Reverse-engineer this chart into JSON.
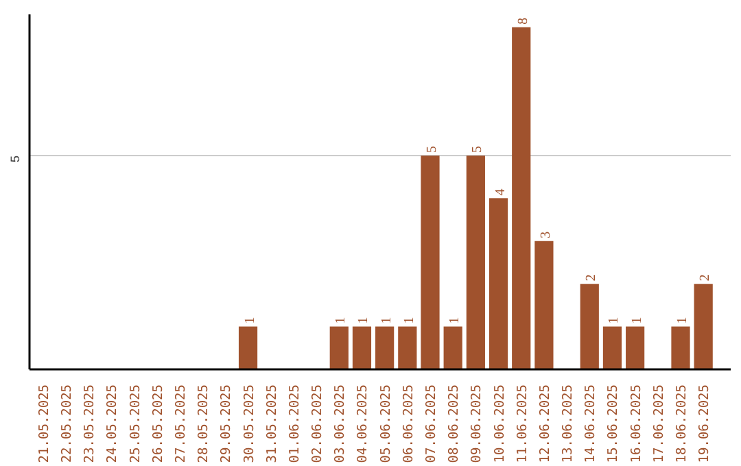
{
  "chart_data": {
    "type": "bar",
    "categories": [
      "21.05.2025",
      "22.05.2025",
      "23.05.2025",
      "24.05.2025",
      "25.05.2025",
      "26.05.2025",
      "27.05.2025",
      "28.05.2025",
      "29.05.2025",
      "30.05.2025",
      "31.05.2025",
      "01.06.2025",
      "02.06.2025",
      "03.06.2025",
      "04.06.2025",
      "05.06.2025",
      "06.06.2025",
      "07.06.2025",
      "08.06.2025",
      "09.06.2025",
      "10.06.2025",
      "11.06.2025",
      "12.06.2025",
      "13.06.2025",
      "14.06.2025",
      "15.06.2025",
      "16.06.2025",
      "17.06.2025",
      "18.06.2025",
      "19.06.2025"
    ],
    "values": [
      0,
      0,
      0,
      0,
      0,
      0,
      0,
      0,
      0,
      1,
      0,
      0,
      0,
      1,
      1,
      1,
      1,
      5,
      1,
      5,
      4,
      8,
      3,
      0,
      2,
      1,
      1,
      0,
      1,
      2
    ],
    "value_labels": [
      null,
      null,
      null,
      null,
      null,
      null,
      null,
      null,
      null,
      "1",
      null,
      null,
      null,
      "1",
      "1",
      "1",
      "1",
      "5",
      "1",
      "5",
      "4",
      "8",
      "3",
      null,
      "2",
      "1",
      "1",
      null,
      "1",
      "2"
    ],
    "color": "#a0522d",
    "ylim": [
      0,
      8.3
    ],
    "yticks": [
      5
    ],
    "grid": "y"
  }
}
